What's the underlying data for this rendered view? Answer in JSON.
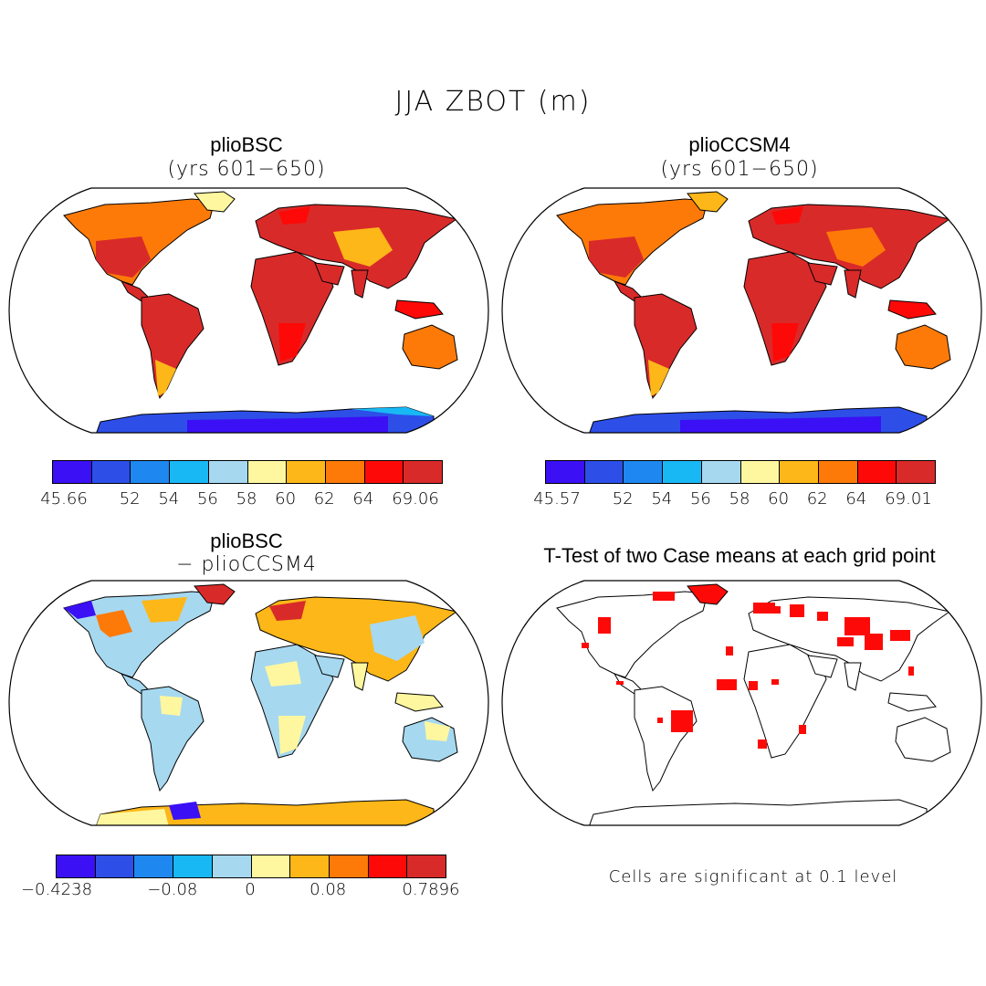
{
  "figure": {
    "title": "JJA ZBOT (m)"
  },
  "panels": [
    {
      "title": "plioBSC",
      "subtitle": "(yrs 601−650)",
      "colorbar": {
        "min_label": "45.66",
        "max_label": "69.06",
        "tick_labels": [
          "52",
          "54",
          "56",
          "58",
          "60",
          "62",
          "64"
        ],
        "colors": [
          "#3b10f5",
          "#2d4fe8",
          "#1e88f0",
          "#18b8f5",
          "#a6d8f0",
          "#fff7a0",
          "#fdb718",
          "#fd7a08",
          "#fd0a08",
          "#d92a2a"
        ]
      }
    },
    {
      "title": "plioCCSM4",
      "subtitle": "(yrs 601−650)",
      "colorbar": {
        "min_label": "45.57",
        "max_label": "69.01",
        "tick_labels": [
          "52",
          "54",
          "56",
          "58",
          "60",
          "62",
          "64"
        ],
        "colors": [
          "#3b10f5",
          "#2d4fe8",
          "#1e88f0",
          "#18b8f5",
          "#a6d8f0",
          "#fff7a0",
          "#fdb718",
          "#fd7a08",
          "#fd0a08",
          "#d92a2a"
        ]
      }
    },
    {
      "title": "plioBSC",
      "subtitle": "− plioCCSM4",
      "colorbar": {
        "min_label": "−0.4238",
        "max_label": "0.7896",
        "tick_labels": [
          "−0.08",
          "0",
          "0.08"
        ],
        "colors": [
          "#3b10f5",
          "#2d4fe8",
          "#1e88f0",
          "#18b8f5",
          "#a6d8f0",
          "#fff7a0",
          "#fdb718",
          "#fd7a08",
          "#fd0a08",
          "#d92a2a"
        ]
      }
    },
    {
      "title": "T-Test of two Case means at each grid point",
      "note": "Cells are significant at 0.1 level",
      "significance_color": "#fd0a08"
    }
  ]
}
